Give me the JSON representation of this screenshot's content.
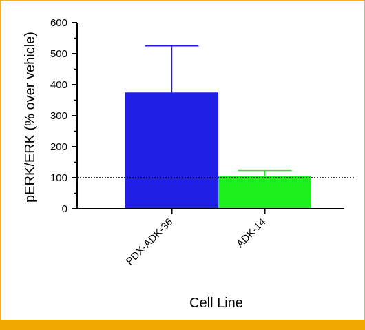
{
  "chart_data": {
    "type": "bar",
    "title": "",
    "xlabel": "Cell Line",
    "ylabel": "pERK/ERK (% over vehicle)",
    "categories": [
      "PDX-ADK-36",
      "ADK-14"
    ],
    "values": [
      375,
      105
    ],
    "error_upper": [
      525,
      123
    ],
    "bar_colors": [
      "#1f1fe6",
      "#1ef01e"
    ],
    "ylim": [
      0,
      600
    ],
    "yticks": [
      0,
      100,
      200,
      300,
      400,
      500,
      600
    ],
    "reference_line": {
      "y": 100,
      "style": "dotted"
    },
    "grid": false,
    "legend": "none"
  },
  "colors": {
    "frame_border": "#f0b02a",
    "bottom_band": "#f0a800"
  }
}
